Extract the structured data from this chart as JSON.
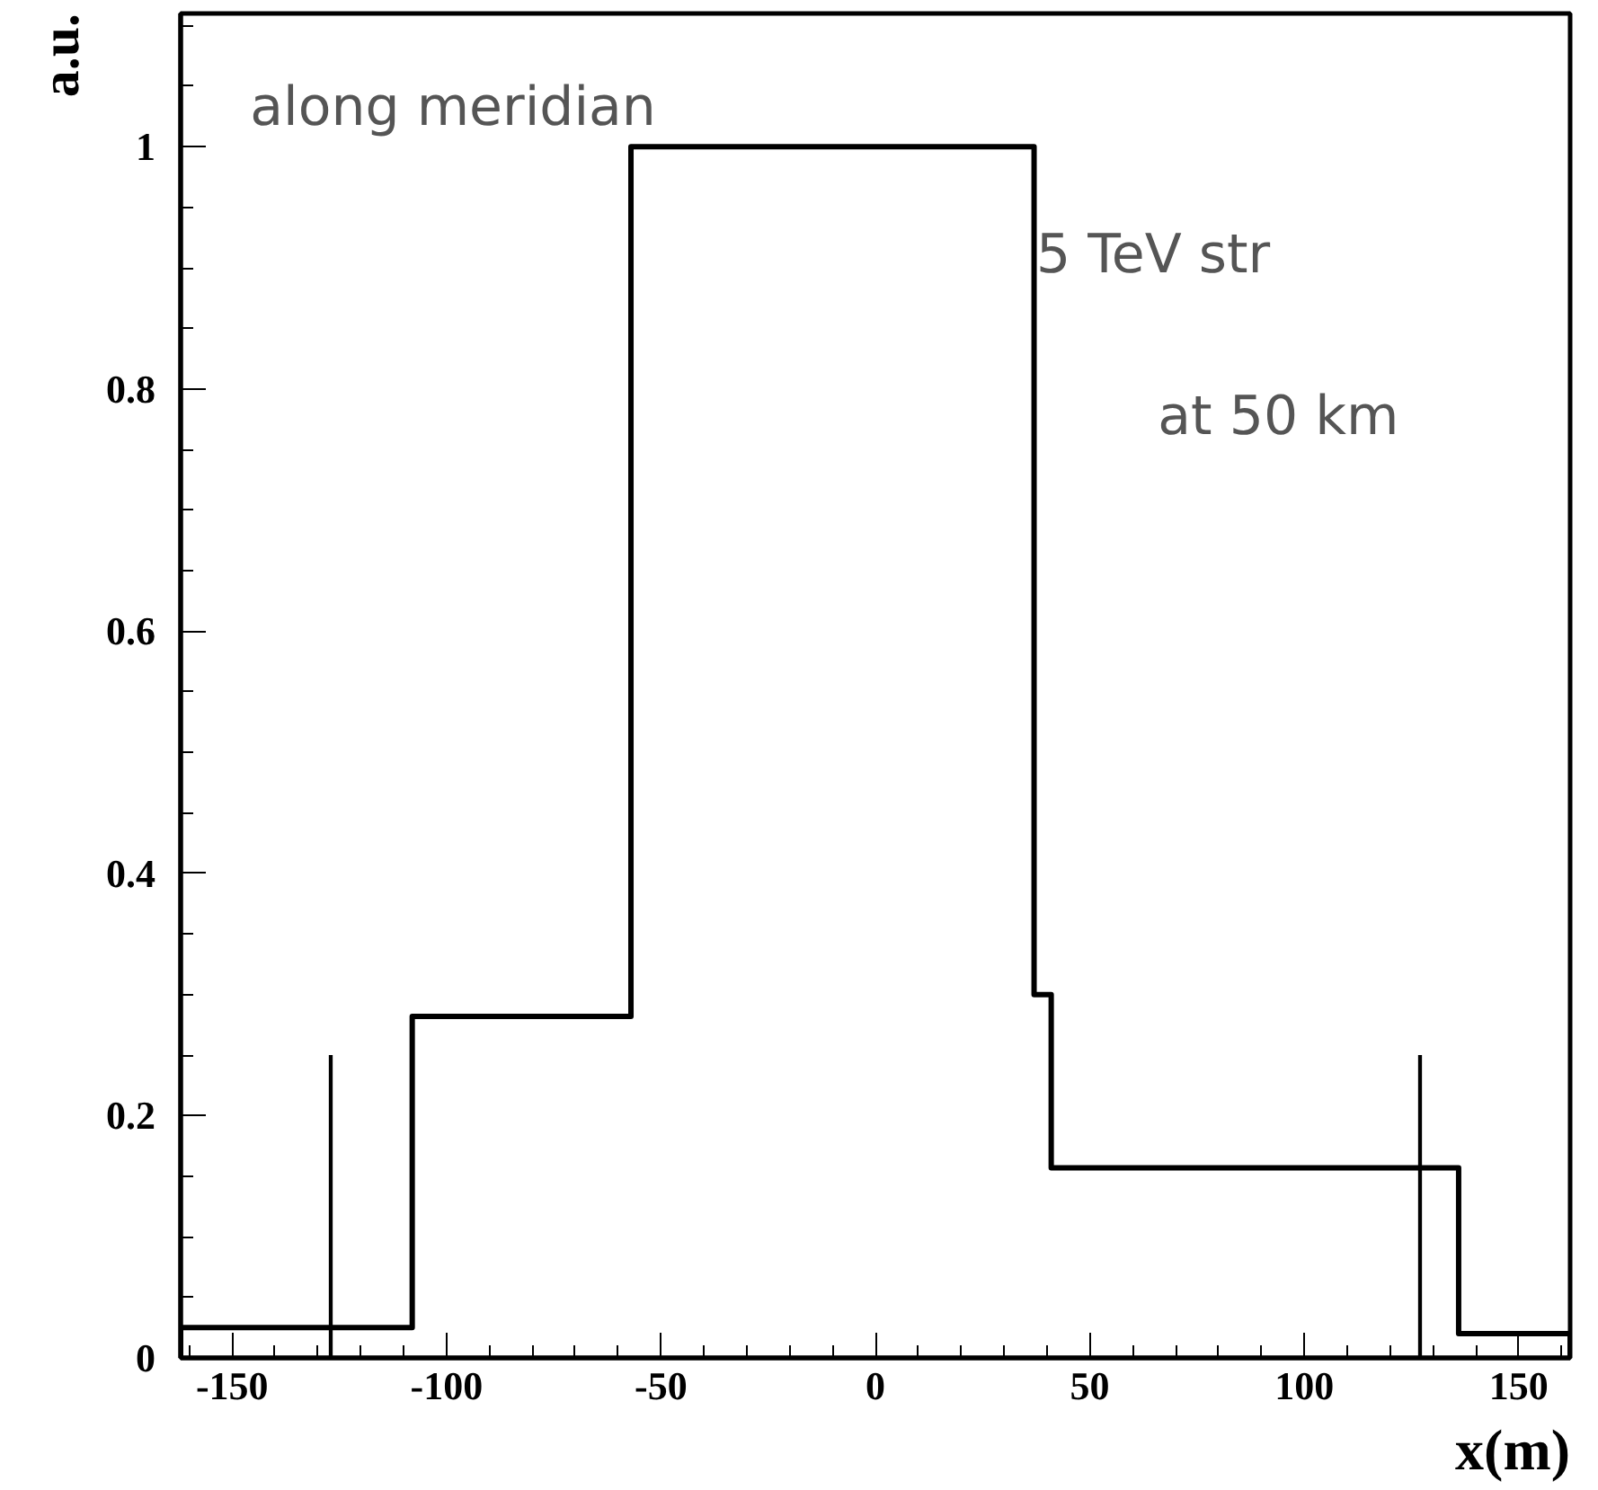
{
  "chart_data": {
    "type": "histogram",
    "xlabel": "x(m)",
    "ylabel": "a.u.",
    "bins": [
      -162,
      -108,
      -57,
      37,
      41,
      136,
      162
    ],
    "values": [
      0.025,
      0.282,
      1.0,
      0.3,
      0.157,
      0.02
    ],
    "color": "#000000",
    "series": [
      {
        "type": "bar",
        "color": "#000000",
        "x": [
          -127,
          127
        ],
        "values": [
          0.25,
          0.25
        ]
      }
    ],
    "annotations": [
      "along meridian",
      "5 TeV str",
      "at 50 km"
    ],
    "xlim": [
      -162,
      162
    ],
    "ylim": [
      0,
      1.11
    ],
    "xticks": [
      -150,
      -100,
      -50,
      0,
      50,
      100,
      150
    ],
    "yticks": [
      0,
      0.2,
      0.4,
      0.6,
      0.8,
      1
    ],
    "grid": false
  }
}
